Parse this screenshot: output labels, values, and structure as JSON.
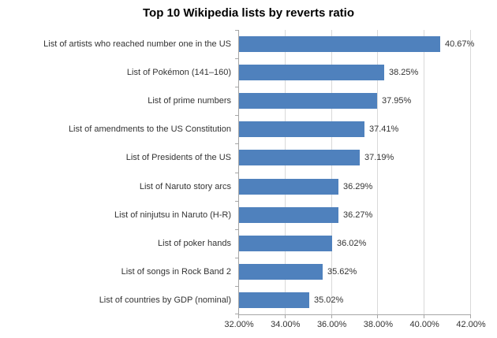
{
  "chart_data": {
    "type": "bar",
    "orientation": "horizontal",
    "title": "Top 10 Wikipedia lists by reverts ratio",
    "categories": [
      "List of artists who reached number one in the US",
      "List of Pokémon (141–160)",
      "List of prime numbers",
      "List of amendments to the US Constitution",
      "List of Presidents of the US",
      "List of Naruto story arcs",
      "List of ninjutsu in Naruto (H-R)",
      "List of poker hands",
      "List of songs in Rock Band 2",
      "List of countries by GDP (nominal)"
    ],
    "values": [
      40.67,
      38.25,
      37.95,
      37.41,
      37.19,
      36.29,
      36.27,
      36.02,
      35.62,
      35.02
    ],
    "value_labels": [
      "40.67%",
      "38.25%",
      "37.95%",
      "37.41%",
      "37.19%",
      "36.29%",
      "36.27%",
      "36.02%",
      "35.62%",
      "35.02%"
    ],
    "xlabel": "",
    "ylabel": "",
    "xlim": [
      32,
      42
    ],
    "x_ticks": [
      32,
      34,
      36,
      38,
      40,
      42
    ],
    "x_tick_labels": [
      "32.00%",
      "34.00%",
      "36.00%",
      "38.00%",
      "40.00%",
      "42.00%"
    ],
    "grid": true,
    "legend": false,
    "colors": {
      "bar": "#4F81BD",
      "gridline": "#D9D9D9",
      "axis": "#A6A6A6",
      "label_text": "#333333",
      "title_text": "#000000"
    }
  }
}
